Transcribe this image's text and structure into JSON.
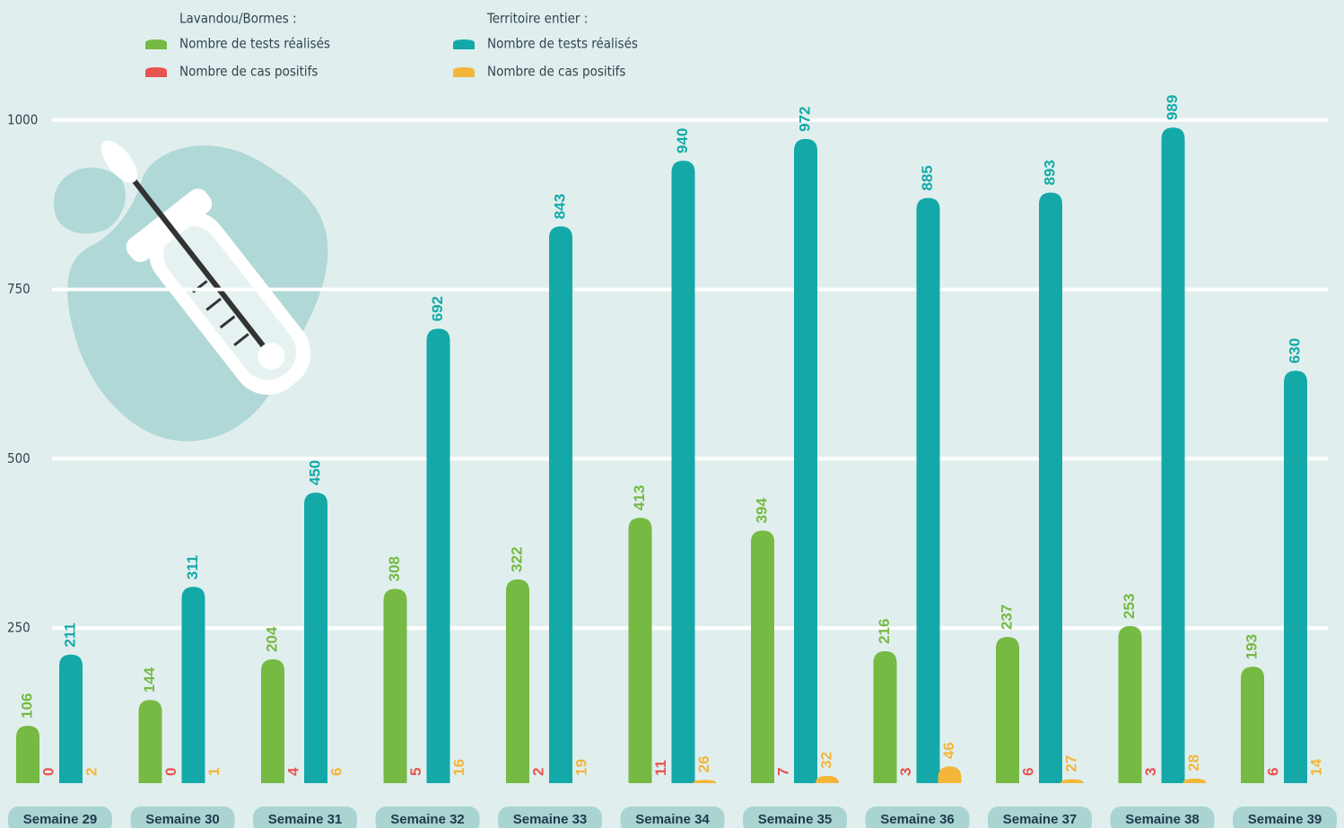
{
  "chart_data": {
    "type": "bar",
    "categories": [
      "Semaine 29",
      "Semaine 30",
      "Semaine 31",
      "Semaine 32",
      "Semaine 33",
      "Semaine 34",
      "Semaine 35",
      "Semaine 36",
      "Semaine 37",
      "Semaine 38",
      "Semaine 39"
    ],
    "legend_titles": [
      "Lavandou/Bormes :",
      "Territoire entier :"
    ],
    "series": [
      {
        "name": "Nombre de tests réalisés",
        "color": "#76b943",
        "values": [
          106,
          144,
          204,
          308,
          322,
          413,
          394,
          216,
          237,
          253,
          193
        ]
      },
      {
        "name": "Nombre de cas positifs",
        "color": "#e8534f",
        "values": [
          0,
          0,
          4,
          5,
          2,
          11,
          7,
          3,
          6,
          3,
          6
        ]
      },
      {
        "name": "Nombre de tests réalisés",
        "color": "#14a9a8",
        "values": [
          211,
          311,
          450,
          692,
          843,
          940,
          972,
          885,
          893,
          989,
          630
        ]
      },
      {
        "name": "Nombre de cas positifs",
        "color": "#f3b63a",
        "values": [
          2,
          1,
          6,
          16,
          19,
          26,
          32,
          46,
          27,
          28,
          14
        ]
      }
    ],
    "ylim": [
      0,
      1050
    ],
    "yticks": [
      250,
      500,
      750,
      1000
    ],
    "grid": true
  }
}
